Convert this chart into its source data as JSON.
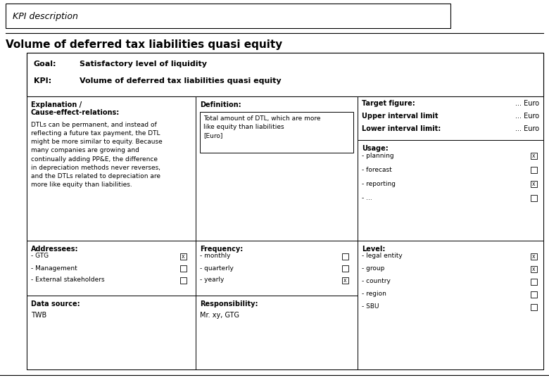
{
  "title_box": "KPI description",
  "main_title": "Volume of deferred tax liabilities quasi equity",
  "goal_label": "Goal:",
  "goal_value": "Satisfactory level of liquidity",
  "kpi_label": "KPI:",
  "kpi_value": "Volume of deferred tax liabilities quasi equity",
  "explanation_title1": "Explanation /",
  "explanation_title2": "Cause-effect-relations:",
  "explanation_body": "DTLs can be permanent, and instead of\nreflecting a future tax payment, the DTL\nmight be more similar to equity. Because\nmany companies are growing and\ncontinually adding PP&E, the difference\nin depreciation methods never reverses,\nand the DTLs related to depreciation are\nmore like equity than liabilities.",
  "definition_title": "Definition:",
  "definition_body": "Total amount of DTL, which are more\nlike equity than liabilities\n[Euro]",
  "target_figure": "Target figure:",
  "target_figure_val": "... Euro",
  "upper_interval": "Upper interval limit",
  "upper_interval_val": "... Euro",
  "lower_interval": "Lower interval limit:",
  "lower_interval_val": "... Euro",
  "usage_title": "Usage:",
  "usage_items": [
    "- planning",
    "- forecast",
    "- reporting",
    "- ..."
  ],
  "usage_checks": [
    true,
    false,
    true,
    false
  ],
  "addressees_title": "Addressees:",
  "addressees_items": [
    "- GTG",
    "- Management",
    "- External stakeholders"
  ],
  "addressees_checks": [
    true,
    false,
    false
  ],
  "frequency_title": "Frequency:",
  "frequency_items": [
    "- monthly",
    "- quarterly",
    "- yearly"
  ],
  "frequency_checks": [
    false,
    false,
    true
  ],
  "level_title": "Level:",
  "level_items": [
    "- legal entity",
    "- group",
    "- country",
    "- region",
    "- SBU"
  ],
  "level_checks": [
    true,
    true,
    false,
    false,
    false
  ],
  "datasource_title": "Data source:",
  "datasource_value": "TWB",
  "responsibility_title": "Responsibility:",
  "responsibility_value": "Mr. xy, GTG",
  "bg_color": "#ffffff"
}
